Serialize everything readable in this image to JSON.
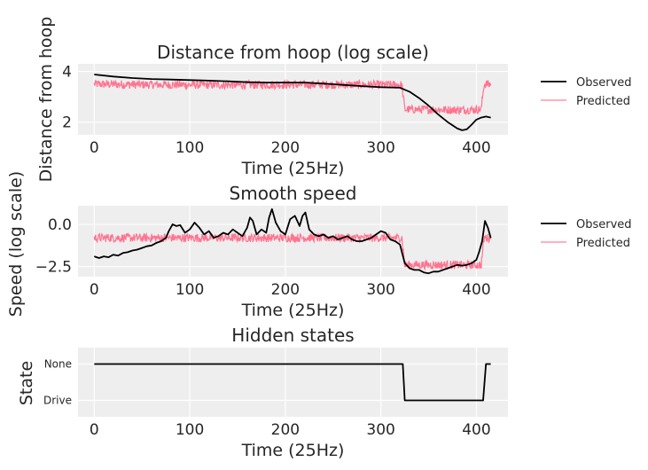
{
  "chart_data": [
    {
      "type": "line",
      "title": "Distance from hoop (log scale)",
      "xlabel": "Time (25Hz)",
      "ylabel": "Distance from hoop",
      "xlim": [
        -17,
        433
      ],
      "ylim": [
        1.5,
        4.3
      ],
      "xticks": [
        0,
        100,
        200,
        300,
        400
      ],
      "yticks": [
        2,
        4
      ],
      "grid": true,
      "legend_position": "right",
      "series": [
        {
          "name": "Observed",
          "color": "#000000",
          "x": [
            0,
            20,
            40,
            60,
            80,
            100,
            120,
            140,
            160,
            180,
            200,
            220,
            240,
            260,
            280,
            300,
            320,
            330,
            340,
            350,
            360,
            370,
            380,
            385,
            390,
            395,
            400,
            405,
            410,
            415
          ],
          "y": [
            3.88,
            3.8,
            3.74,
            3.7,
            3.68,
            3.66,
            3.64,
            3.61,
            3.58,
            3.56,
            3.56,
            3.56,
            3.52,
            3.47,
            3.42,
            3.38,
            3.36,
            3.2,
            2.95,
            2.65,
            2.3,
            2.0,
            1.75,
            1.68,
            1.72,
            1.9,
            2.1,
            2.18,
            2.22,
            2.18
          ]
        },
        {
          "name": "Predicted",
          "color": "#ff6b8a",
          "x": [
            0,
            50,
            100,
            150,
            200,
            250,
            300,
            322,
            325,
            350,
            380,
            405,
            408,
            415
          ],
          "y": [
            3.5,
            3.48,
            3.47,
            3.47,
            3.48,
            3.48,
            3.47,
            3.47,
            2.5,
            2.5,
            2.48,
            2.5,
            3.5,
            3.5
          ]
        }
      ]
    },
    {
      "type": "line",
      "title": "Smooth speed",
      "xlabel": "Time (25Hz)",
      "ylabel": "Speed (log scale)",
      "xlim": [
        -17,
        433
      ],
      "ylim": [
        -3.1,
        1.1
      ],
      "xticks": [
        0,
        100,
        200,
        300,
        400
      ],
      "yticks": [
        0.0,
        -2.5
      ],
      "ytick_labels": [
        "0.0",
        "−2.5"
      ],
      "grid": true,
      "legend_position": "right",
      "series": [
        {
          "name": "Observed",
          "color": "#000000",
          "x": [
            0,
            5,
            10,
            15,
            20,
            25,
            30,
            35,
            40,
            45,
            50,
            55,
            60,
            65,
            70,
            75,
            78,
            82,
            86,
            90,
            95,
            100,
            105,
            110,
            115,
            120,
            125,
            130,
            135,
            140,
            145,
            150,
            155,
            160,
            163,
            166,
            170,
            175,
            180,
            183,
            186,
            190,
            195,
            200,
            205,
            210,
            215,
            218,
            221,
            225,
            230,
            235,
            240,
            245,
            250,
            255,
            260,
            265,
            270,
            275,
            280,
            285,
            290,
            295,
            300,
            305,
            310,
            315,
            320,
            325,
            330,
            335,
            340,
            345,
            350,
            355,
            360,
            365,
            370,
            375,
            380,
            385,
            390,
            395,
            400,
            403,
            406,
            409,
            412,
            415
          ],
          "y": [
            -1.9,
            -2.0,
            -1.9,
            -1.95,
            -1.8,
            -1.85,
            -1.7,
            -1.65,
            -1.55,
            -1.5,
            -1.4,
            -1.3,
            -1.25,
            -1.1,
            -1.0,
            -0.8,
            -0.4,
            0.0,
            -0.1,
            -0.05,
            -0.5,
            -0.3,
            0.1,
            -0.2,
            -0.6,
            -0.4,
            -0.8,
            -0.7,
            -0.5,
            -0.6,
            -0.3,
            -0.5,
            -0.7,
            -0.2,
            0.4,
            0.2,
            -0.6,
            -0.3,
            -0.5,
            0.4,
            0.9,
            0.1,
            -0.4,
            -0.6,
            0.3,
            0.5,
            -0.1,
            0.5,
            0.7,
            -0.3,
            -0.6,
            -0.7,
            -0.6,
            -0.8,
            -0.7,
            -0.9,
            -0.8,
            -0.7,
            -0.9,
            -1.0,
            -1.0,
            -0.9,
            -0.8,
            -0.6,
            -0.4,
            -0.5,
            -0.9,
            -1.0,
            -1.2,
            -2.3,
            -2.6,
            -2.7,
            -2.7,
            -2.85,
            -2.9,
            -2.8,
            -2.8,
            -2.7,
            -2.6,
            -2.5,
            -2.4,
            -2.45,
            -2.4,
            -2.3,
            -2.1,
            -1.6,
            -1.0,
            0.2,
            -0.2,
            -0.8
          ]
        },
        {
          "name": "Predicted",
          "color": "#ff6b8a",
          "x": [
            0,
            50,
            100,
            150,
            200,
            250,
            300,
            322,
            325,
            350,
            380,
            405,
            408,
            415
          ],
          "y": [
            -0.8,
            -0.8,
            -0.8,
            -0.8,
            -0.8,
            -0.8,
            -0.8,
            -0.8,
            -2.4,
            -2.4,
            -2.4,
            -2.4,
            -0.8,
            -0.8
          ]
        }
      ]
    },
    {
      "type": "line",
      "title": "Hidden states",
      "xlabel": "Time (25Hz)",
      "ylabel": "State",
      "xlim": [
        -17,
        433
      ],
      "ylim": [
        -0.45,
        1.45
      ],
      "xticks": [
        0,
        100,
        200,
        300,
        400
      ],
      "ytick_labels": [
        "Drive",
        "None"
      ],
      "yticks": [
        0,
        1
      ],
      "grid": true,
      "series": [
        {
          "name": "",
          "color": "#000000",
          "x": [
            0,
            320,
            323,
            325,
            405,
            407,
            410,
            415
          ],
          "y": [
            1,
            1,
            1,
            0,
            0,
            0,
            1,
            1
          ]
        }
      ]
    }
  ]
}
